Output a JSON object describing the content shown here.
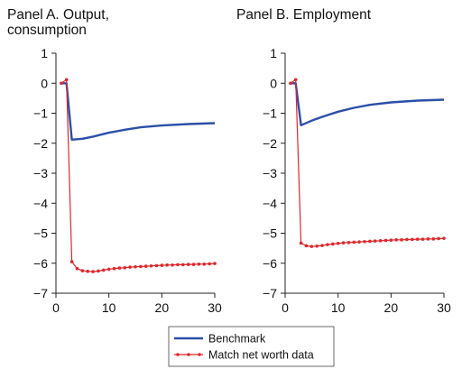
{
  "chart_data": [
    {
      "type": "line",
      "title_lines": [
        "Panel A. Output,",
        "consumption"
      ],
      "xlabel": "",
      "ylabel": "",
      "xlim": [
        0,
        30
      ],
      "ylim": [
        -7,
        1
      ],
      "xticks": [
        0,
        10,
        20,
        30
      ],
      "yticks": [
        1,
        0,
        -1,
        -2,
        -3,
        -4,
        -5,
        -6,
        -7
      ],
      "ytick_labels": [
        "1",
        "0",
        "−1",
        "−2",
        "−3",
        "−4",
        "−5",
        "−6",
        "−7"
      ],
      "grid": false,
      "series": [
        {
          "name": "Benchmark",
          "color": "#2b4fa8",
          "markers": false,
          "x": [
            1,
            2,
            3,
            5,
            7,
            10,
            13,
            16,
            20,
            25,
            30
          ],
          "y": [
            0,
            0,
            -1.88,
            -1.85,
            -1.78,
            -1.65,
            -1.55,
            -1.47,
            -1.41,
            -1.36,
            -1.33
          ]
        },
        {
          "name": "Match net worth data",
          "color": "#e0262b",
          "markers": true,
          "x": [
            1,
            2,
            3,
            4,
            5,
            6,
            7,
            8,
            9,
            10,
            11,
            12,
            13,
            14,
            15,
            16,
            17,
            18,
            19,
            20,
            21,
            22,
            23,
            24,
            25,
            26,
            27,
            28,
            29,
            30
          ],
          "y": [
            0,
            0.12,
            -5.95,
            -6.18,
            -6.25,
            -6.27,
            -6.28,
            -6.26,
            -6.23,
            -6.2,
            -6.18,
            -6.16,
            -6.15,
            -6.13,
            -6.12,
            -6.11,
            -6.1,
            -6.09,
            -6.08,
            -6.07,
            -6.06,
            -6.06,
            -6.05,
            -6.05,
            -6.04,
            -6.04,
            -6.03,
            -6.03,
            -6.02,
            -6.01
          ]
        }
      ]
    },
    {
      "type": "line",
      "title_lines": [
        "Panel B. Employment"
      ],
      "xlabel": "",
      "ylabel": "",
      "xlim": [
        0,
        30
      ],
      "ylim": [
        -7,
        1
      ],
      "xticks": [
        0,
        10,
        20,
        30
      ],
      "yticks": [
        1,
        0,
        -1,
        -2,
        -3,
        -4,
        -5,
        -6,
        -7
      ],
      "ytick_labels": [
        "1",
        "0",
        "−1",
        "−2",
        "−3",
        "−4",
        "−5",
        "−6",
        "−7"
      ],
      "grid": false,
      "series": [
        {
          "name": "Benchmark",
          "color": "#2b4fa8",
          "markers": false,
          "x": [
            1,
            2,
            3,
            5,
            7,
            10,
            13,
            16,
            20,
            25,
            30
          ],
          "y": [
            0,
            0,
            -1.4,
            -1.25,
            -1.12,
            -0.95,
            -0.82,
            -0.72,
            -0.64,
            -0.58,
            -0.55
          ]
        },
        {
          "name": "Match net worth data",
          "color": "#e0262b",
          "markers": true,
          "x": [
            1,
            2,
            3,
            4,
            5,
            6,
            7,
            8,
            9,
            10,
            11,
            12,
            13,
            14,
            15,
            16,
            17,
            18,
            19,
            20,
            21,
            22,
            23,
            24,
            25,
            26,
            27,
            28,
            29,
            30
          ],
          "y": [
            0,
            0.12,
            -5.33,
            -5.42,
            -5.44,
            -5.43,
            -5.41,
            -5.38,
            -5.36,
            -5.34,
            -5.32,
            -5.31,
            -5.3,
            -5.29,
            -5.28,
            -5.27,
            -5.26,
            -5.25,
            -5.24,
            -5.23,
            -5.22,
            -5.22,
            -5.21,
            -5.21,
            -5.2,
            -5.2,
            -5.19,
            -5.19,
            -5.18,
            -5.17
          ]
        }
      ]
    }
  ],
  "legend": {
    "placement": "bottom-center",
    "entries": [
      {
        "label": "Benchmark",
        "color": "#2b4fa8",
        "marker": false
      },
      {
        "label": "Match net worth data",
        "color": "#e0262b",
        "marker": true
      }
    ]
  }
}
